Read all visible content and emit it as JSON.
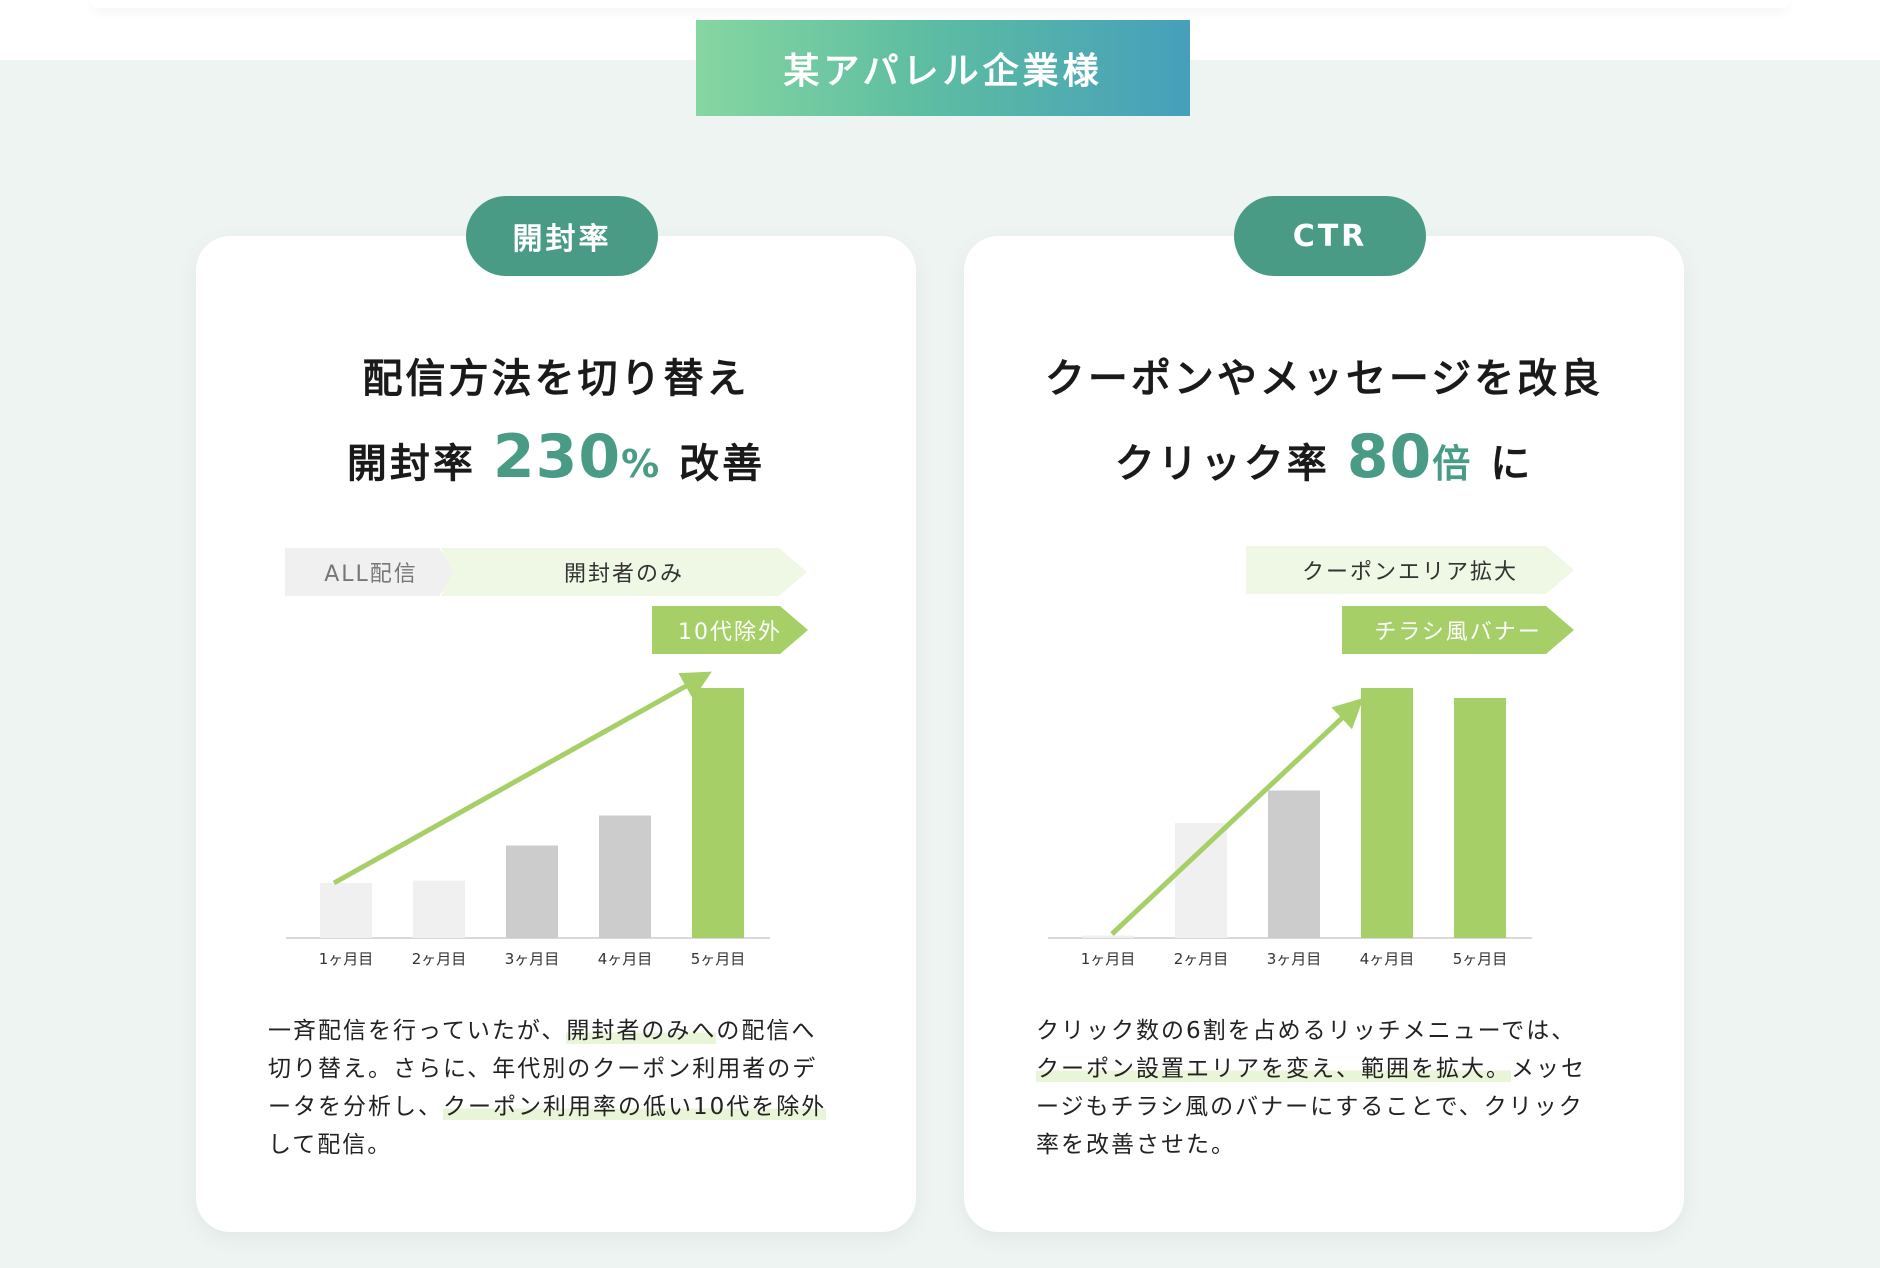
{
  "company_label": "某アパレル企業様",
  "cards": [
    {
      "pill": "開封率",
      "headline_line1": "配信方法を切り替え",
      "headline_line2_pre": "開封率",
      "headline_number": "230",
      "headline_unit": "%",
      "headline_line2_post": "改善",
      "tags": [
        "ALL配信",
        "開封者のみ",
        "10代除外"
      ],
      "description": {
        "p1": "一斉配信を行っていたが、",
        "h1": "開封者のみへ",
        "p2": "の配信へ切り替え。さらに、年代別のクーポン利用者のデータを分析し、",
        "h2": "クーポン利用率の低い10代を除外",
        "p3": "して配信。"
      }
    },
    {
      "pill": "CTR",
      "headline_line1": "クーポンやメッセージを改良",
      "headline_line2_pre": "クリック率",
      "headline_number": "80",
      "headline_unit": "倍",
      "headline_line2_post": "に",
      "tags": [
        "クーポンエリア拡大",
        "チラシ風バナー"
      ],
      "description": {
        "p1": "クリック数の6割を占めるリッチメニューでは、",
        "h1": "クーポン設置エリアを変え、範囲を拡大。",
        "p2": "メッセージもチラシ風のバナーにすることで、クリック率を改善させた。"
      }
    }
  ],
  "colors": {
    "accent_teal": "#4a9b86",
    "bar_green": "#a7cf68",
    "bar_grey": "#cccccc",
    "bar_light": "#f0f0f0"
  },
  "chart_data": [
    {
      "type": "bar",
      "title": "開封率",
      "categories": [
        "1ヶ月目",
        "2ヶ月目",
        "3ヶ月目",
        "4ヶ月目",
        "5ヶ月目"
      ],
      "values": [
        22,
        23,
        37,
        49,
        100
      ],
      "bar_colors": [
        "#f0f0f0",
        "#f0f0f0",
        "#cccccc",
        "#cccccc",
        "#a7cf68"
      ],
      "ylim": [
        0,
        100
      ],
      "trend_arrow": {
        "from_index": 0,
        "to_index": 4,
        "color": "#a7cf68"
      },
      "grid": false
    },
    {
      "type": "bar",
      "title": "CTR",
      "categories": [
        "1ヶ月目",
        "2ヶ月目",
        "3ヶ月目",
        "4ヶ月目",
        "5ヶ月目"
      ],
      "values": [
        1,
        46,
        59,
        100,
        96
      ],
      "bar_colors": [
        "#f0f0f0",
        "#f0f0f0",
        "#cccccc",
        "#a7cf68",
        "#a7cf68"
      ],
      "ylim": [
        0,
        100
      ],
      "trend_arrow": {
        "from_index": 0,
        "to_index": 3,
        "color": "#a7cf68"
      },
      "grid": false
    }
  ]
}
